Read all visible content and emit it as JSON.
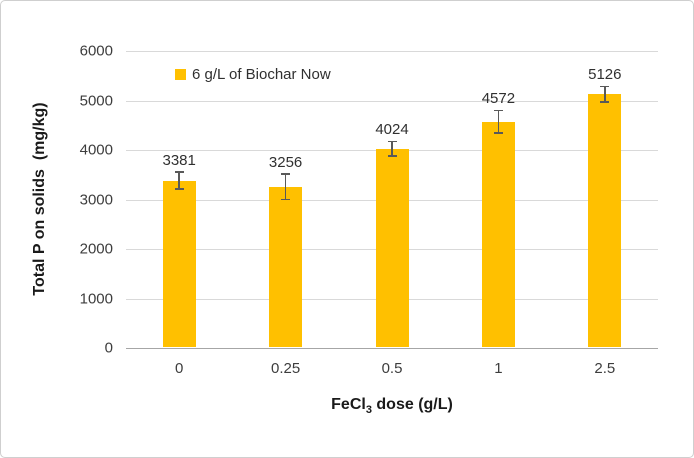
{
  "chart_data": {
    "type": "bar",
    "title": "",
    "legend": [
      "6 g/L of Biochar Now"
    ],
    "legend_position": "top-inside-left",
    "categories": [
      "0",
      "0.25",
      "0.5",
      "1",
      "2.5"
    ],
    "series": [
      {
        "name": "6 g/L of Biochar Now",
        "values": [
          3381,
          3256,
          4024,
          4572,
          5126
        ],
        "data_labels": [
          "3381",
          "3256",
          "4024",
          "4572",
          "5126"
        ],
        "error_bars": [
          170,
          260,
          150,
          230,
          160
        ]
      }
    ],
    "xlabel": {
      "prefix": "FeCl",
      "sub": "3",
      "suffix": " dose (g/L)"
    },
    "ylabel": "Total P on solids  (mg/kg)",
    "ylim": [
      0,
      6000
    ],
    "yticks": [
      0,
      1000,
      2000,
      3000,
      4000,
      5000,
      6000
    ],
    "grid": true,
    "colors": {
      "bar": "#ffc000",
      "gridline": "#d9d9d9",
      "axis_line": "#a6a6a6",
      "error_bar": "#595959",
      "tick_text": "#3d3d3d",
      "title_text": "#1a1a1a",
      "frame_border": "#cfcfcf",
      "background": "#ffffff"
    }
  }
}
